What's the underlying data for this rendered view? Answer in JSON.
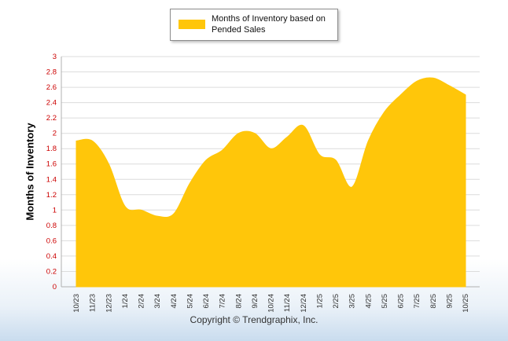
{
  "legend": {
    "label": "Months of Inventory based on Pended Sales",
    "swatch_color": "#FFC60A"
  },
  "footer": {
    "copyright": "Copyright © Trendgraphix, Inc."
  },
  "chart_data": {
    "type": "area",
    "title": "",
    "xlabel": "",
    "ylabel": "Months of Inventory",
    "ylim": [
      0,
      3
    ],
    "ytick_step": 0.2,
    "grid": true,
    "legend_position": "top-center",
    "series_name": "Months of Inventory based on Pended Sales",
    "series_color": "#FFC60A",
    "ytick_color": "#cc0000",
    "xtick_color": "#333333",
    "grid_color": "#dcdcdc",
    "axis_color": "#b0b0b0",
    "categories": [
      "10/23",
      "11/23",
      "12/23",
      "1/24",
      "2/24",
      "3/24",
      "4/24",
      "5/24",
      "6/24",
      "7/24",
      "8/24",
      "9/24",
      "10/24",
      "11/24",
      "12/24",
      "1/25",
      "2/25",
      "3/25",
      "4/25",
      "5/25",
      "6/25",
      "7/25",
      "8/25",
      "9/25",
      "10/25"
    ],
    "values": [
      1.9,
      1.9,
      1.6,
      1.05,
      1.0,
      0.92,
      0.95,
      1.35,
      1.65,
      1.78,
      2.0,
      2.0,
      1.8,
      1.95,
      2.1,
      1.72,
      1.65,
      1.3,
      1.9,
      2.28,
      2.5,
      2.68,
      2.72,
      2.62,
      2.5
    ]
  }
}
